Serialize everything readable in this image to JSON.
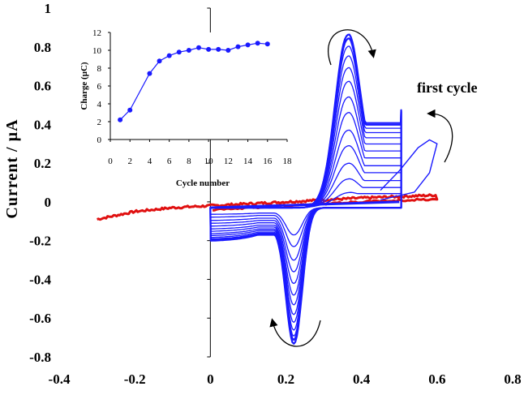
{
  "chart_data": [
    {
      "type": "line",
      "title": "",
      "xlabel": "",
      "ylabel": "Current / µA",
      "xlim": [
        -0.4,
        0.8
      ],
      "ylim": [
        -0.8,
        1.0
      ],
      "x_ticks": [
        "-0.4",
        "-0.2",
        "0",
        "0.2",
        "0.4",
        "0.6",
        "0.8"
      ],
      "y_ticks": [
        "-0.8",
        "-0.6",
        "-0.4",
        "-0.2",
        "0",
        "0.2",
        "0.4",
        "0.6",
        "0.8",
        "1"
      ],
      "grid": false,
      "annotation": "first cycle",
      "series_colors": [
        "#1a1aff",
        "#e01010"
      ],
      "blue_peaks_anodic": [
        0.05,
        0.12,
        0.2,
        0.29,
        0.37,
        0.46,
        0.54,
        0.62,
        0.69,
        0.75,
        0.8,
        0.84,
        0.86
      ],
      "blue_peaks_cathodic": [
        -0.14,
        -0.2,
        -0.27,
        -0.33,
        -0.39,
        -0.45,
        -0.5,
        -0.55,
        -0.59,
        -0.63,
        -0.66,
        -0.68,
        -0.7
      ],
      "first_cycle": {
        "x": [
          0.45,
          0.5,
          0.55,
          0.58,
          0.6,
          0.58,
          0.54,
          0.45
        ],
        "y": [
          0.06,
          0.16,
          0.28,
          0.32,
          0.3,
          0.15,
          0.05,
          0.01
        ]
      },
      "red_trace": {
        "x": [
          -0.3,
          -0.25,
          -0.2,
          -0.1,
          0.0,
          0.2,
          0.4,
          0.6
        ],
        "y": [
          -0.09,
          -0.07,
          -0.05,
          -0.03,
          -0.02,
          0.0,
          0.02,
          0.035
        ]
      }
    },
    {
      "type": "line",
      "title": "",
      "xlabel": "Cycle number",
      "ylabel": "Charge (µC)",
      "xlim": [
        0,
        18
      ],
      "ylim": [
        0,
        12
      ],
      "x_ticks": [
        "0",
        "2",
        "4",
        "6",
        "8",
        "10",
        "12",
        "14",
        "16",
        "18"
      ],
      "y_ticks": [
        "0",
        "2",
        "4",
        "6",
        "8",
        "10",
        "12"
      ],
      "color": "#1a1aff",
      "x": [
        1,
        2,
        4,
        5,
        6,
        7,
        8,
        9,
        10,
        11,
        12,
        13,
        14,
        15,
        16
      ],
      "y": [
        2.2,
        3.3,
        7.4,
        8.8,
        9.4,
        9.8,
        10.0,
        10.3,
        10.1,
        10.1,
        10.0,
        10.4,
        10.6,
        10.8,
        10.7
      ]
    }
  ]
}
